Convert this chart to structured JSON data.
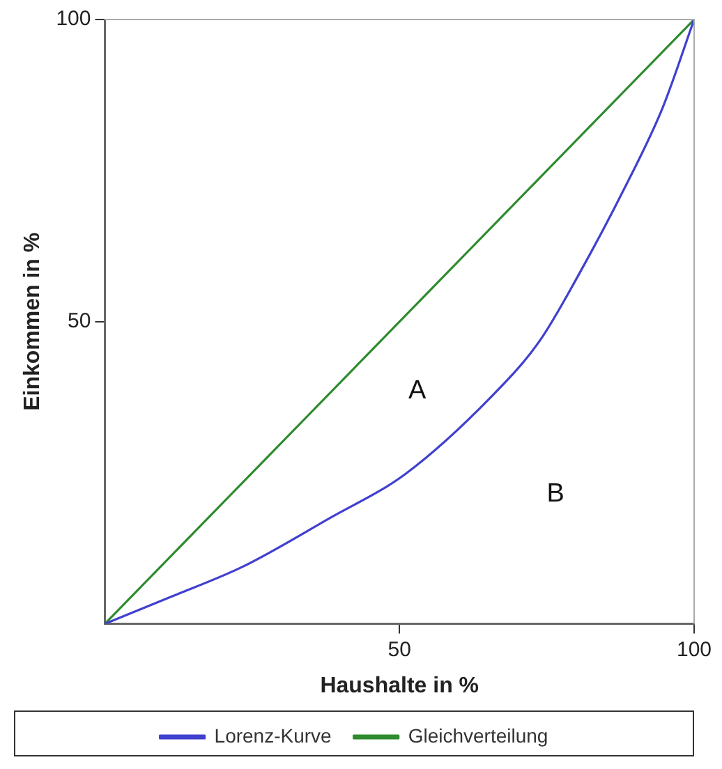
{
  "chart_data": {
    "type": "line",
    "xlabel": "Haushalte in %",
    "ylabel": "Einkommen in %",
    "xlim": [
      0,
      100
    ],
    "ylim": [
      0,
      100
    ],
    "xticks": [
      50,
      100
    ],
    "yticks": [
      50,
      100
    ],
    "grid": false,
    "legend": "bottom",
    "marker": "none",
    "line_style": "solid",
    "series": [
      {
        "name": "Lorenz-Kurve",
        "color": "#4040d0",
        "x": [
          0,
          11.3,
          23.5,
          38,
          51,
          65.6,
          73.7,
          80.2,
          88.3,
          94.7,
          100
        ],
        "values": [
          0,
          4.5,
          9.5,
          17.4,
          24.8,
          37.6,
          46.7,
          57.4,
          72.3,
          85.5,
          100
        ]
      },
      {
        "name": "Gleichverteilung",
        "color": "#2e8b2e",
        "x": [
          0,
          100
        ],
        "values": [
          0,
          100
        ]
      }
    ],
    "annotations": [
      "A",
      "B"
    ]
  }
}
